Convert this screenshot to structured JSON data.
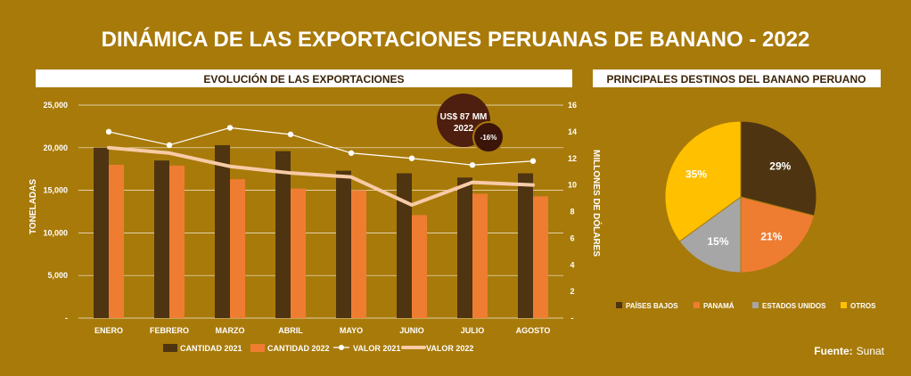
{
  "title": "DINÁMICA DE LAS EXPORTACIONES PERUANAS DE BANANO - 2022",
  "source": {
    "label": "Fuente:",
    "value": "Sunat"
  },
  "colors": {
    "background": "#a87a0a",
    "panel": "#ffffff",
    "cantidad_2021": "#4e3410",
    "cantidad_2022": "#ee7d32",
    "valor_2021": "#ffffff",
    "valor_2022": "#f7cba6",
    "bubble_main": "#4e1f0e",
    "bubble_small": "#3b150a"
  },
  "chart_data": [
    {
      "type": "bar",
      "title": "EVOLUCIÓN DE LAS EXPORTACIONES",
      "categories": [
        "ENERO",
        "FEBRERO",
        "MARZO",
        "ABRIL",
        "MAYO",
        "JUNIO",
        "JULIO",
        "AGOSTO"
      ],
      "ylabel": "TONELADAS",
      "ylim": [
        0,
        25000
      ],
      "y_ticks": [
        "-",
        "5,000",
        "10,000",
        "15,000",
        "20,000",
        "25,000"
      ],
      "y2label": "MILLONES DE DÓLARES",
      "y2lim": [
        0,
        16
      ],
      "y2_ticks": [
        "-",
        "2",
        "4",
        "6",
        "8",
        "10",
        "12",
        "14",
        "16"
      ],
      "grid": true,
      "legend_placement": "bottom",
      "series": [
        {
          "name": "CANTIDAD 2021",
          "type": "bar",
          "axis": "left",
          "values": [
            20000,
            18500,
            20300,
            19600,
            17300,
            17000,
            16500,
            17000
          ]
        },
        {
          "name": "CANTIDAD 2022",
          "type": "bar",
          "axis": "left",
          "values": [
            18000,
            17900,
            16300,
            15200,
            15000,
            12100,
            14600,
            14300
          ]
        },
        {
          "name": "VALOR 2021",
          "type": "line",
          "axis": "right",
          "values": [
            14.0,
            13.0,
            14.3,
            13.8,
            12.4,
            12.0,
            11.5,
            11.8
          ]
        },
        {
          "name": "VALOR 2022",
          "type": "line",
          "axis": "right",
          "values": [
            12.8,
            12.4,
            11.4,
            10.9,
            10.6,
            8.5,
            10.2,
            10.0
          ]
        }
      ],
      "annotations": [
        {
          "line1": "US$ 87 MM",
          "line2": "2022"
        },
        {
          "line1": "-16%"
        }
      ]
    },
    {
      "type": "pie",
      "title": "PRINCIPALES DESTINOS DEL BANANO PERUANO",
      "legend_placement": "bottom",
      "slices": [
        {
          "label": "PAÍSES BAJOS",
          "value": 29,
          "display": "29%",
          "color": "#4e3410"
        },
        {
          "label": "PANAMÁ",
          "value": 21,
          "display": "21%",
          "color": "#ee7d32"
        },
        {
          "label": "ESTADOS UNIDOS",
          "value": 15,
          "display": "15%",
          "color": "#a6a6a6"
        },
        {
          "label": "OTROS",
          "value": 35,
          "display": "35%",
          "color": "#ffc000"
        }
      ]
    }
  ]
}
